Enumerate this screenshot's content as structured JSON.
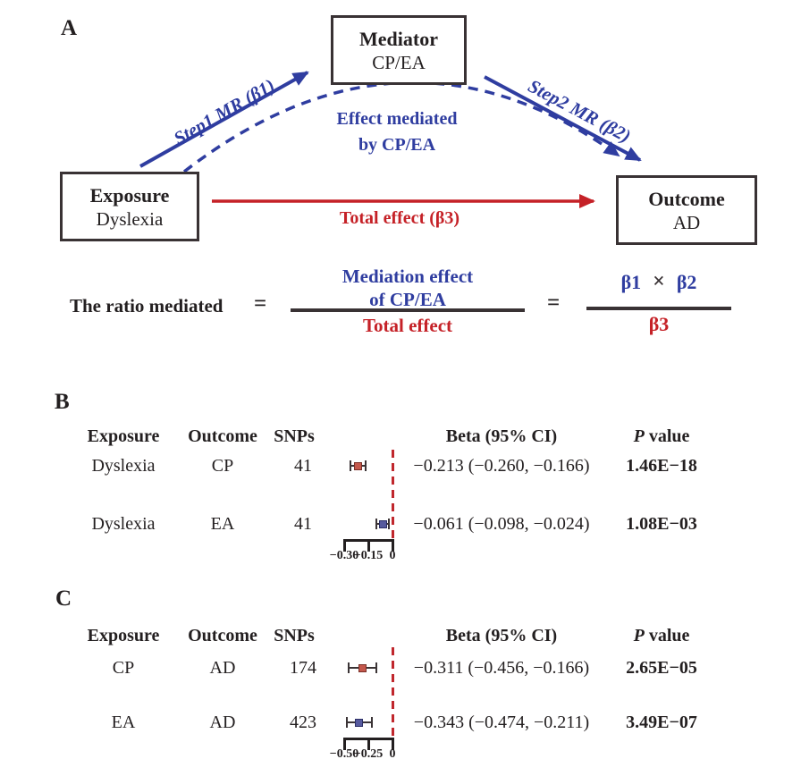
{
  "colors": {
    "blue_accent": "#2f3da0",
    "red_accent": "#c52127",
    "ink": "#231f20",
    "zero_line_red": "#c0272d",
    "marker_red_fill": "#c4584c",
    "marker_blue_fill": "#565a9e"
  },
  "panelA": {
    "label": "A",
    "mediator": {
      "title": "Mediator",
      "subtitle": "CP/EA"
    },
    "exposure": {
      "title": "Exposure",
      "subtitle": "Dyslexia"
    },
    "outcome": {
      "title": "Outcome",
      "subtitle": "AD"
    },
    "step1_label": "Step1 MR (β1)",
    "step2_label": "Step2 MR (β2)",
    "mediated_line1": "Effect mediated",
    "mediated_line2": "by CP/EA",
    "total_effect_label": "Total effect (β3)",
    "formula": {
      "lhs": "The ratio mediated",
      "eq1": "=",
      "eq2": "=",
      "frac1_num_line1": "Mediation effect",
      "frac1_num_line2": "of CP/EA",
      "frac1_den": "Total effect",
      "beta1": "β1",
      "times": "×",
      "beta2": "β2",
      "beta3": "β3"
    }
  },
  "panelB": {
    "label": "B",
    "headers": {
      "exposure": "Exposure",
      "outcome": "Outcome",
      "snps": "SNPs",
      "beta": "Beta (95% CI)",
      "p_italic": "P",
      "p_rest": "value"
    }
  },
  "panelC": {
    "label": "C",
    "headers": {
      "exposure": "Exposure",
      "outcome": "Outcome",
      "snps": "SNPs",
      "beta": "Beta (95% CI)",
      "p_italic": "P",
      "p_rest": "value"
    }
  },
  "chart_data": [
    {
      "panel": "B",
      "type": "forest",
      "columns": [
        "Exposure",
        "Outcome",
        "SNPs",
        "Beta (95% CI)",
        "P value"
      ],
      "axis": {
        "ticks": [
          {
            "v": -0.3,
            "label": "−0.30"
          },
          {
            "v": -0.15,
            "label": "−0.15"
          },
          {
            "v": 0,
            "label": "0"
          }
        ],
        "xlim": [
          -0.33,
          0.02
        ],
        "zero_reference_line": true
      },
      "rows": [
        {
          "exposure": "Dyslexia",
          "outcome": "CP",
          "snps": "41",
          "beta": -0.213,
          "ci": [
            -0.26,
            -0.166
          ],
          "beta_text": "−0.213 (−0.260, −0.166)",
          "p": "1.46E−18",
          "color": "#c4584c",
          "edge": "#7a2f27"
        },
        {
          "exposure": "Dyslexia",
          "outcome": "EA",
          "snps": "41",
          "beta": -0.061,
          "ci": [
            -0.098,
            -0.024
          ],
          "beta_text": "−0.061 (−0.098, −0.024)",
          "p": "1.08E−03",
          "color": "#565a9e",
          "edge": "#2c2f66"
        }
      ]
    },
    {
      "panel": "C",
      "type": "forest",
      "columns": [
        "Exposure",
        "Outcome",
        "SNPs",
        "Beta (95% CI)",
        "P value"
      ],
      "axis": {
        "ticks": [
          {
            "v": -0.5,
            "label": "−0.50"
          },
          {
            "v": -0.25,
            "label": "−0.25"
          },
          {
            "v": 0,
            "label": "0"
          }
        ],
        "xlim": [
          -0.55,
          0.03
        ],
        "zero_reference_line": true
      },
      "rows": [
        {
          "exposure": "CP",
          "outcome": "AD",
          "snps": "174",
          "beta": -0.311,
          "ci": [
            -0.456,
            -0.166
          ],
          "beta_text": "−0.311 (−0.456, −0.166)",
          "p": "2.65E−05",
          "color": "#c4584c",
          "edge": "#7a2f27"
        },
        {
          "exposure": "EA",
          "outcome": "AD",
          "snps": "423",
          "beta": -0.343,
          "ci": [
            -0.474,
            -0.211
          ],
          "beta_text": "−0.343 (−0.474, −0.211)",
          "p": "3.49E−07",
          "color": "#565a9e",
          "edge": "#2c2f66"
        }
      ]
    }
  ]
}
